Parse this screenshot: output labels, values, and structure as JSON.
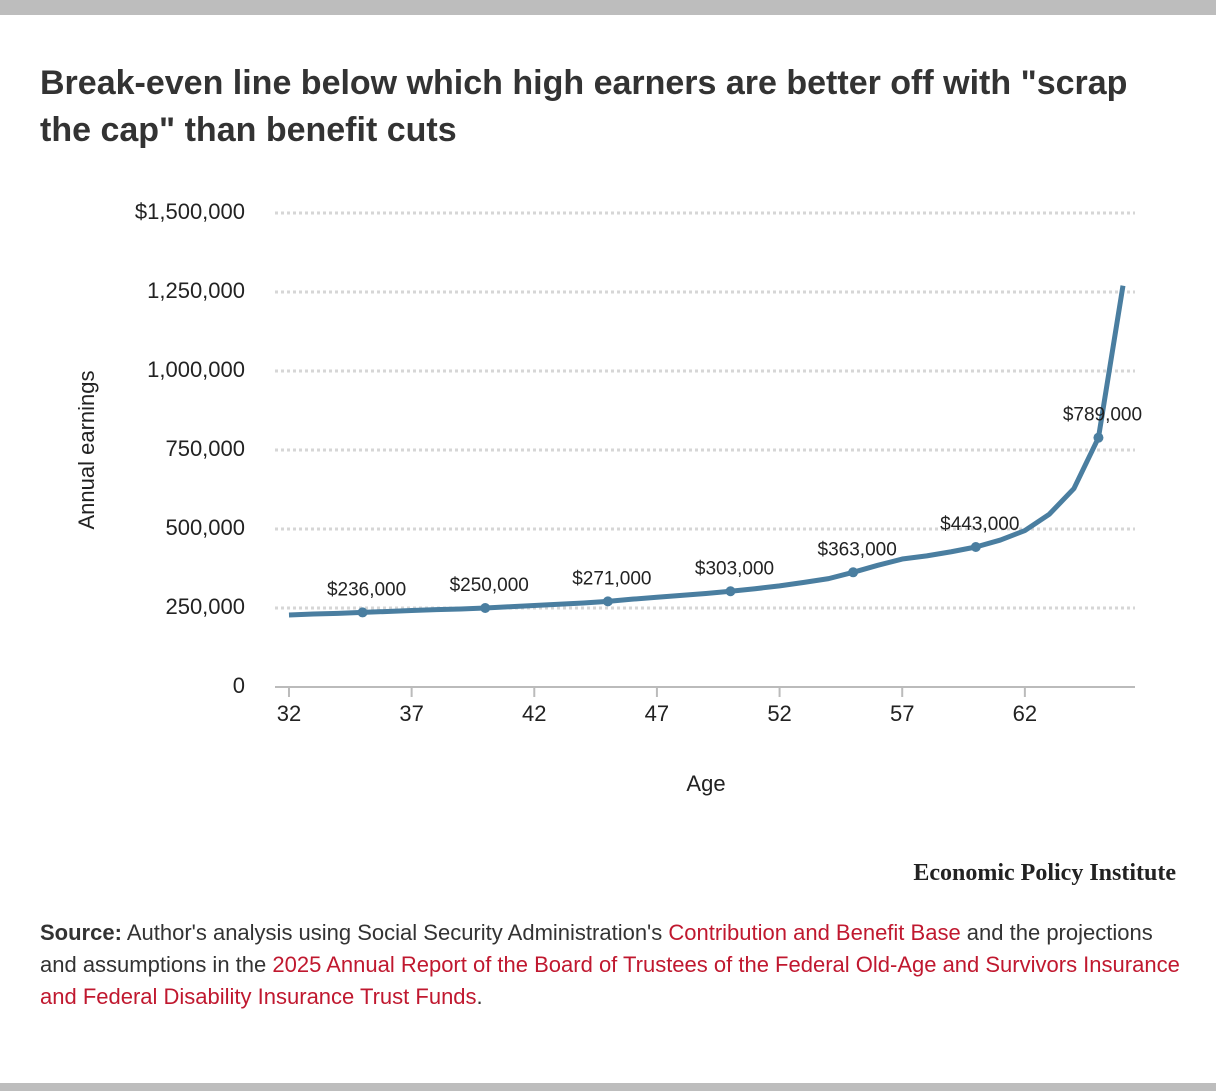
{
  "chart_data": {
    "type": "line",
    "title": "Break-even line below which high earners are better off with \"scrap the cap\" than benefit cuts",
    "x_label": "Age",
    "y_label": "Annual earnings",
    "color": "#4a7ea0",
    "grid": true,
    "x": [
      32,
      33,
      34,
      35,
      36,
      37,
      38,
      39,
      40,
      41,
      42,
      43,
      44,
      45,
      46,
      47,
      48,
      49,
      50,
      51,
      52,
      53,
      54,
      55,
      56,
      57,
      58,
      59,
      60,
      61,
      62,
      63,
      64,
      65,
      66
    ],
    "values": [
      228000,
      231000,
      233000,
      236000,
      239000,
      242000,
      245000,
      247000,
      250000,
      254000,
      258000,
      262000,
      266000,
      271000,
      278000,
      284000,
      290000,
      296000,
      303000,
      311000,
      320000,
      331000,
      343000,
      363000,
      385000,
      405000,
      415000,
      428000,
      443000,
      465000,
      495000,
      547000,
      628000,
      789000,
      1270000
    ],
    "value_labels": [
      null,
      null,
      null,
      "$236,000",
      null,
      null,
      null,
      null,
      "$250,000",
      null,
      null,
      null,
      null,
      "$271,000",
      null,
      null,
      null,
      null,
      "$303,000",
      null,
      null,
      null,
      null,
      "$363,000",
      null,
      null,
      null,
      null,
      "$443,000",
      null,
      null,
      null,
      null,
      "$789,000",
      null
    ],
    "xlim": [
      31.43,
      66.49
    ],
    "xticks": [
      32,
      37,
      42,
      47,
      52,
      57,
      62
    ],
    "ylim": [
      0,
      1500000
    ],
    "yticks": [
      0,
      {
        "value": 250000,
        "label": "250,000"
      },
      {
        "value": 500000,
        "label": "500,000"
      },
      {
        "value": 750000,
        "label": "750,000"
      },
      {
        "value": 1000000,
        "label": "1,000,000"
      },
      {
        "value": 1250000,
        "label": "1,250,000"
      },
      {
        "value": 1500000,
        "label": "$1,500,000"
      }
    ]
  },
  "brand": "Economic Policy Institute",
  "source": {
    "label": "Source:",
    "parts": [
      "Author's analysis using Social Security Administration's ",
      "Contribution and Benefit Base",
      " and the projections and assumptions in the ",
      "2025 Annual Report of the Board of Trustees of the Federal Old-Age and Survivors Insurance and Federal Disability Insurance Trust Funds",
      "."
    ]
  }
}
